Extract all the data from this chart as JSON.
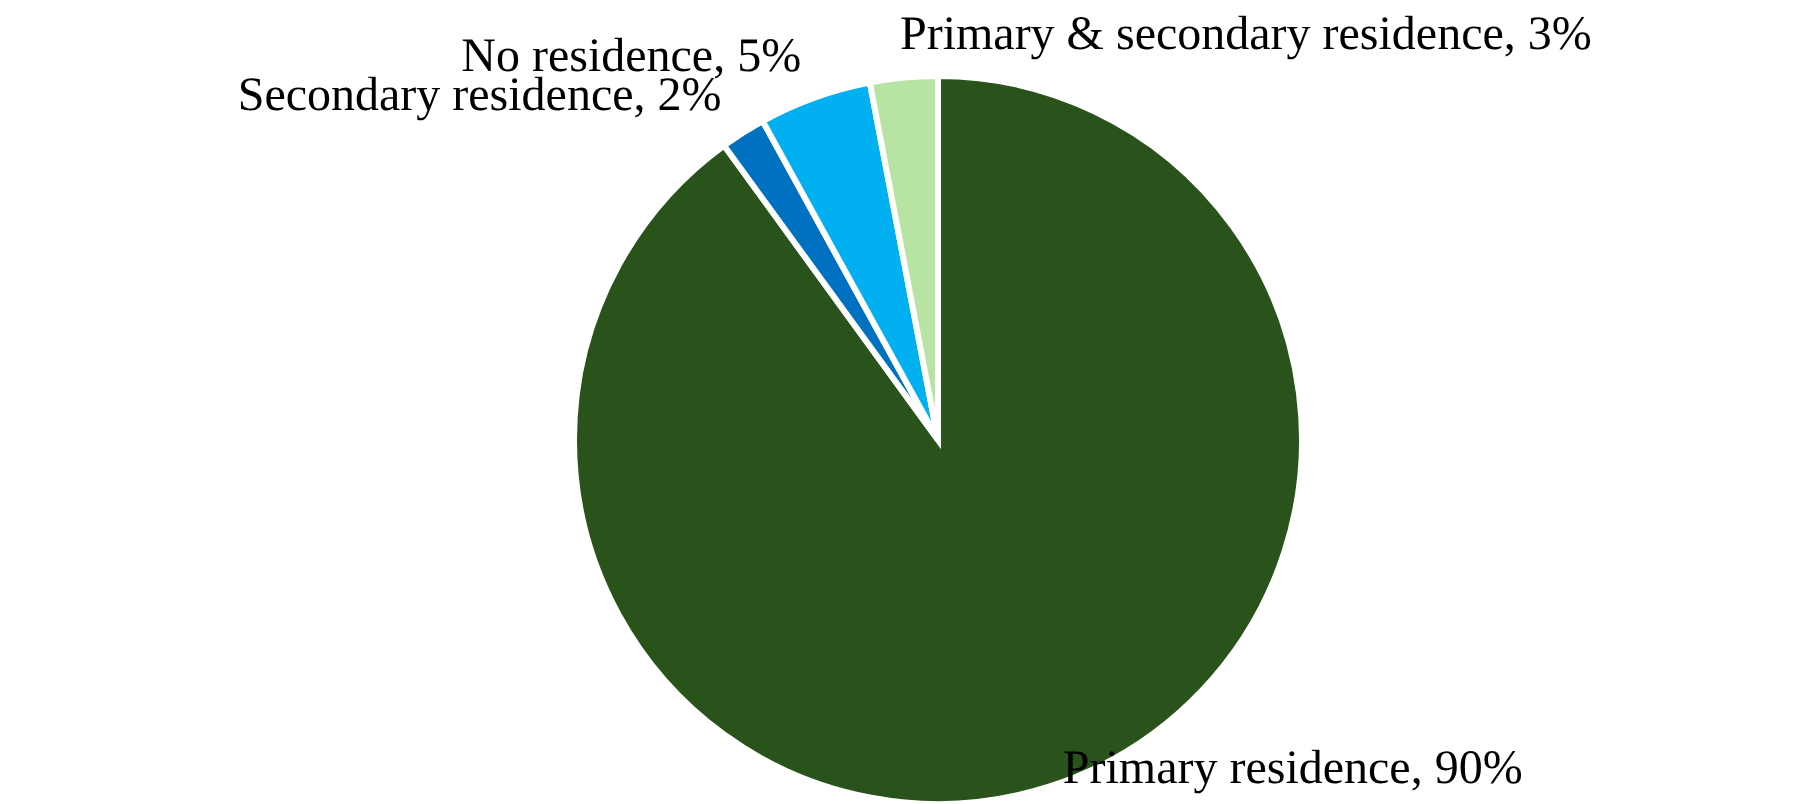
{
  "chart_data": {
    "type": "pie",
    "categories": [
      "Primary residence",
      "Secondary residence",
      "No residence",
      "Primary & secondary residence"
    ],
    "values": [
      90,
      2,
      5,
      3
    ],
    "colors": [
      "#29531a",
      "#0070c0",
      "#00b0f0",
      "#b7e3a3"
    ],
    "value_labels": [
      "90%",
      "2%",
      "5%",
      "3%"
    ],
    "legend": false
  }
}
